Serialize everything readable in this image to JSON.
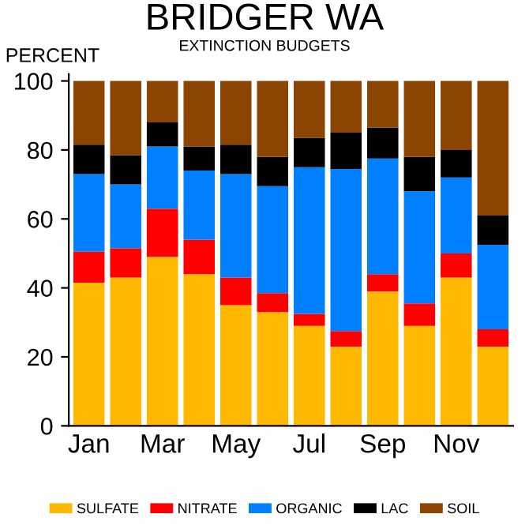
{
  "chart_data": {
    "type": "bar",
    "stacked": true,
    "title": "BRIDGER WA",
    "subtitle": "EXTINCTION BUDGETS",
    "ylabel": "PERCENT",
    "categories": [
      "Jan",
      null,
      "Mar",
      null,
      "May",
      null,
      "Jul",
      null,
      "Sep",
      null,
      "Nov",
      null
    ],
    "series": [
      {
        "name": "SULFATE",
        "color": "#ffb900",
        "values": [
          41.5,
          43,
          49,
          44,
          35,
          33,
          29,
          23,
          39,
          29,
          43,
          23
        ]
      },
      {
        "name": "NITRATE",
        "color": "#ff0000",
        "values": [
          9,
          8.5,
          14,
          10,
          8,
          5.5,
          3.5,
          4.5,
          5,
          6.5,
          7,
          5
        ]
      },
      {
        "name": "ORGANIC",
        "color": "#0080ff",
        "values": [
          22.5,
          18.5,
          18,
          20,
          30,
          31,
          42.5,
          47,
          33.5,
          32.5,
          22,
          24.5
        ]
      },
      {
        "name": "LAC",
        "color": "#000000",
        "values": [
          8.5,
          8.5,
          7,
          7,
          8.5,
          8.5,
          8.5,
          10.5,
          9,
          10,
          8,
          8.5
        ]
      },
      {
        "name": "SOIL",
        "color": "#8b4500",
        "values": [
          18.5,
          21.5,
          12,
          19,
          18.5,
          22,
          16.5,
          15,
          13.5,
          22,
          20,
          39
        ]
      }
    ],
    "ylim": [
      0,
      102
    ],
    "yticks": [
      0,
      20,
      40,
      60,
      80,
      100
    ],
    "grid": false,
    "legend": "bottom"
  }
}
